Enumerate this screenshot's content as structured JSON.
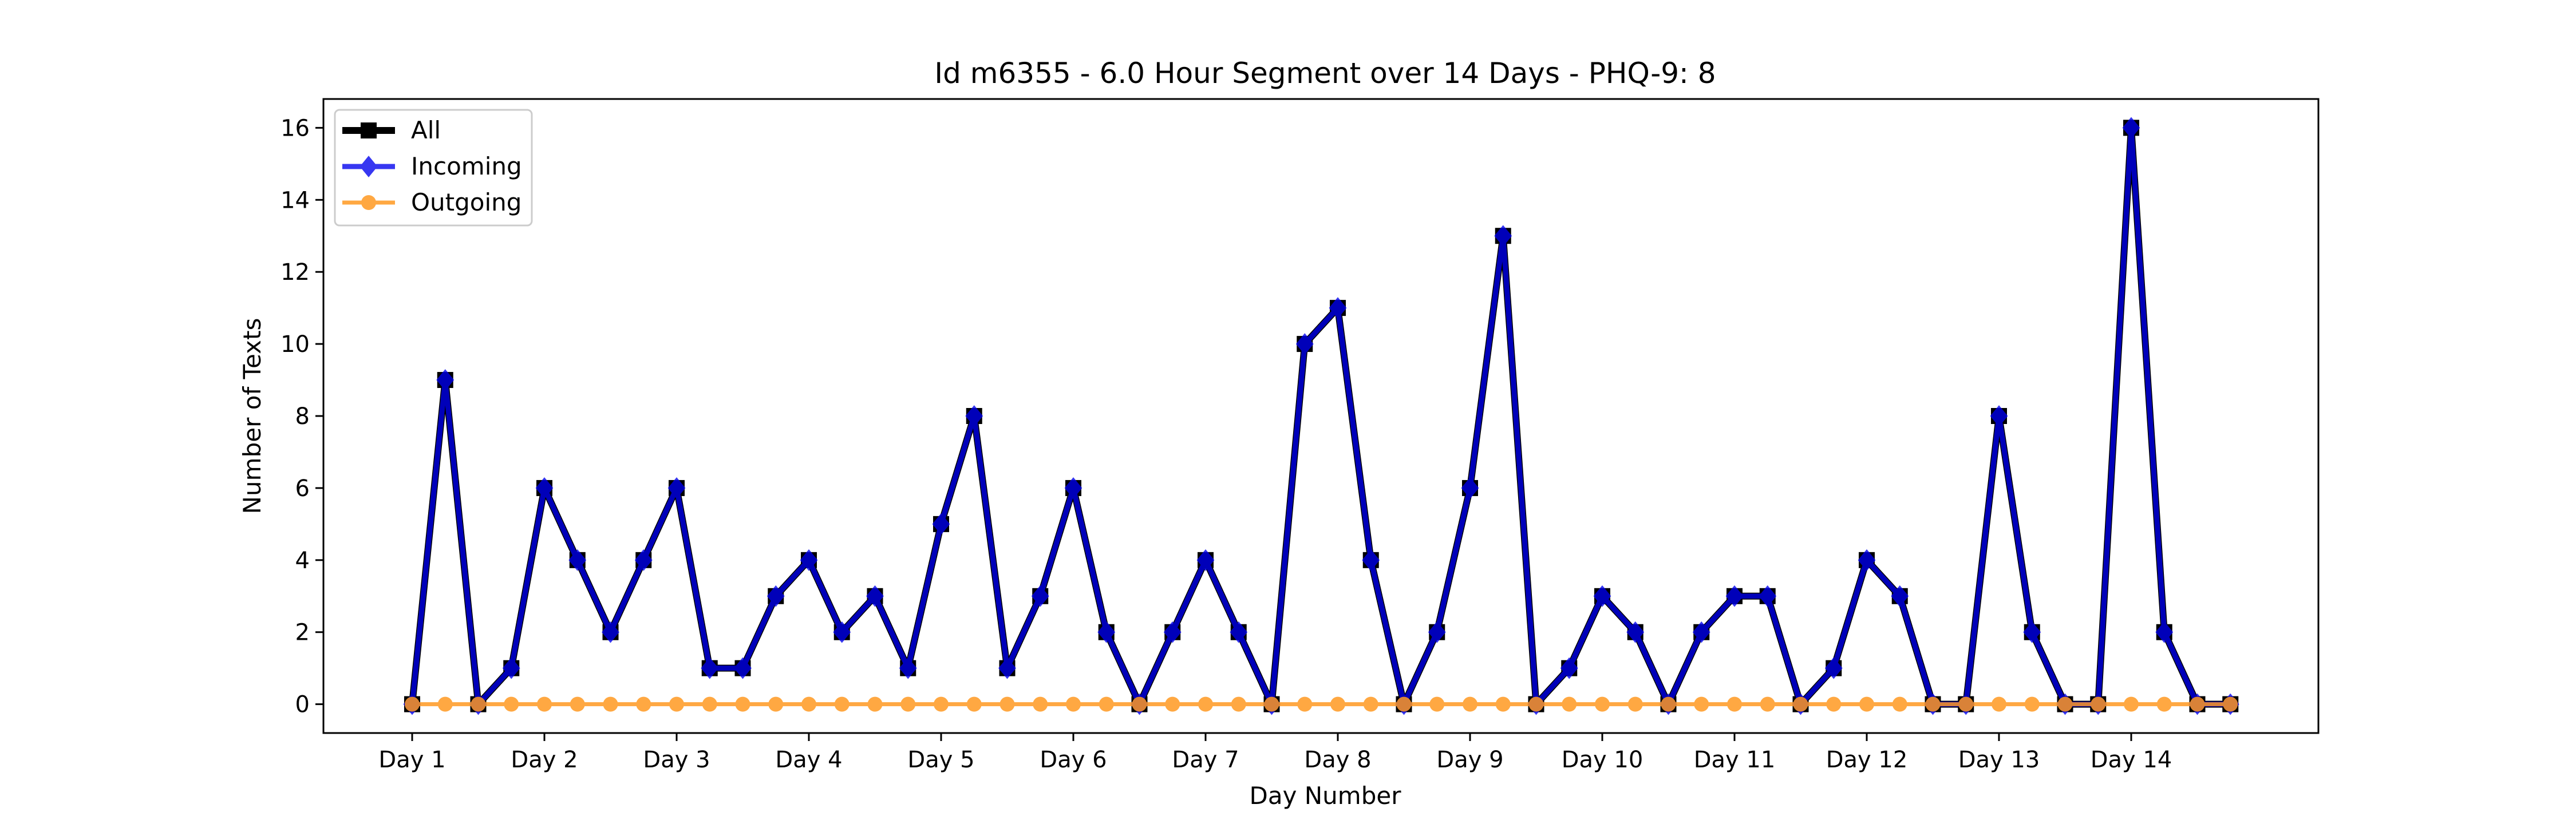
{
  "chart_data": {
    "type": "line",
    "title": "Id m6355 - 6.0 Hour Segment over 14 Days - PHQ-9: 8",
    "xlabel": "Day Number",
    "ylabel": "Number of Texts",
    "x_tick_labels": [
      "Day 1",
      "Day 2",
      "Day 3",
      "Day 4",
      "Day 5",
      "Day 6",
      "Day 7",
      "Day 8",
      "Day 9",
      "Day 10",
      "Day 11",
      "Day 12",
      "Day 13",
      "Day 14"
    ],
    "y_ticks": [
      0,
      2,
      4,
      6,
      8,
      10,
      12,
      14,
      16
    ],
    "y_tick_labels": [
      "0",
      "2",
      "4",
      "6",
      "8",
      "10",
      "12",
      "14",
      "16"
    ],
    "ylim": [
      -0.8,
      16.8
    ],
    "grid": false,
    "legend_position": "top-left",
    "series": [
      {
        "name": "All",
        "color": "#000000",
        "marker": "square",
        "values": [
          0,
          9,
          0,
          1,
          6,
          4,
          2,
          4,
          6,
          1,
          1,
          3,
          4,
          2,
          3,
          1,
          5,
          8,
          1,
          3,
          6,
          2,
          0,
          2,
          4,
          2,
          0,
          10,
          11,
          4,
          0,
          2,
          6,
          13,
          0,
          1,
          3,
          2,
          0,
          2,
          3,
          3,
          0,
          1,
          4,
          3,
          0,
          0,
          8,
          2,
          0,
          0,
          16,
          2,
          0,
          0
        ]
      },
      {
        "name": "Incoming",
        "color": "#0000ee",
        "marker": "diamond",
        "values": [
          0,
          9,
          0,
          1,
          6,
          4,
          2,
          4,
          6,
          1,
          1,
          3,
          4,
          2,
          3,
          1,
          5,
          8,
          1,
          3,
          6,
          2,
          0,
          2,
          4,
          2,
          0,
          10,
          11,
          4,
          0,
          2,
          6,
          13,
          0,
          1,
          3,
          2,
          0,
          2,
          3,
          3,
          0,
          1,
          4,
          3,
          0,
          0,
          8,
          2,
          0,
          0,
          16,
          2,
          0,
          0
        ]
      },
      {
        "name": "Outgoing",
        "color": "#ff9922",
        "marker": "circle",
        "values": [
          0,
          0,
          0,
          0,
          0,
          0,
          0,
          0,
          0,
          0,
          0,
          0,
          0,
          0,
          0,
          0,
          0,
          0,
          0,
          0,
          0,
          0,
          0,
          0,
          0,
          0,
          0,
          0,
          0,
          0,
          0,
          0,
          0,
          0,
          0,
          0,
          0,
          0,
          0,
          0,
          0,
          0,
          0,
          0,
          0,
          0,
          0,
          0,
          0,
          0,
          0,
          0,
          0,
          0,
          0,
          0
        ]
      }
    ]
  }
}
